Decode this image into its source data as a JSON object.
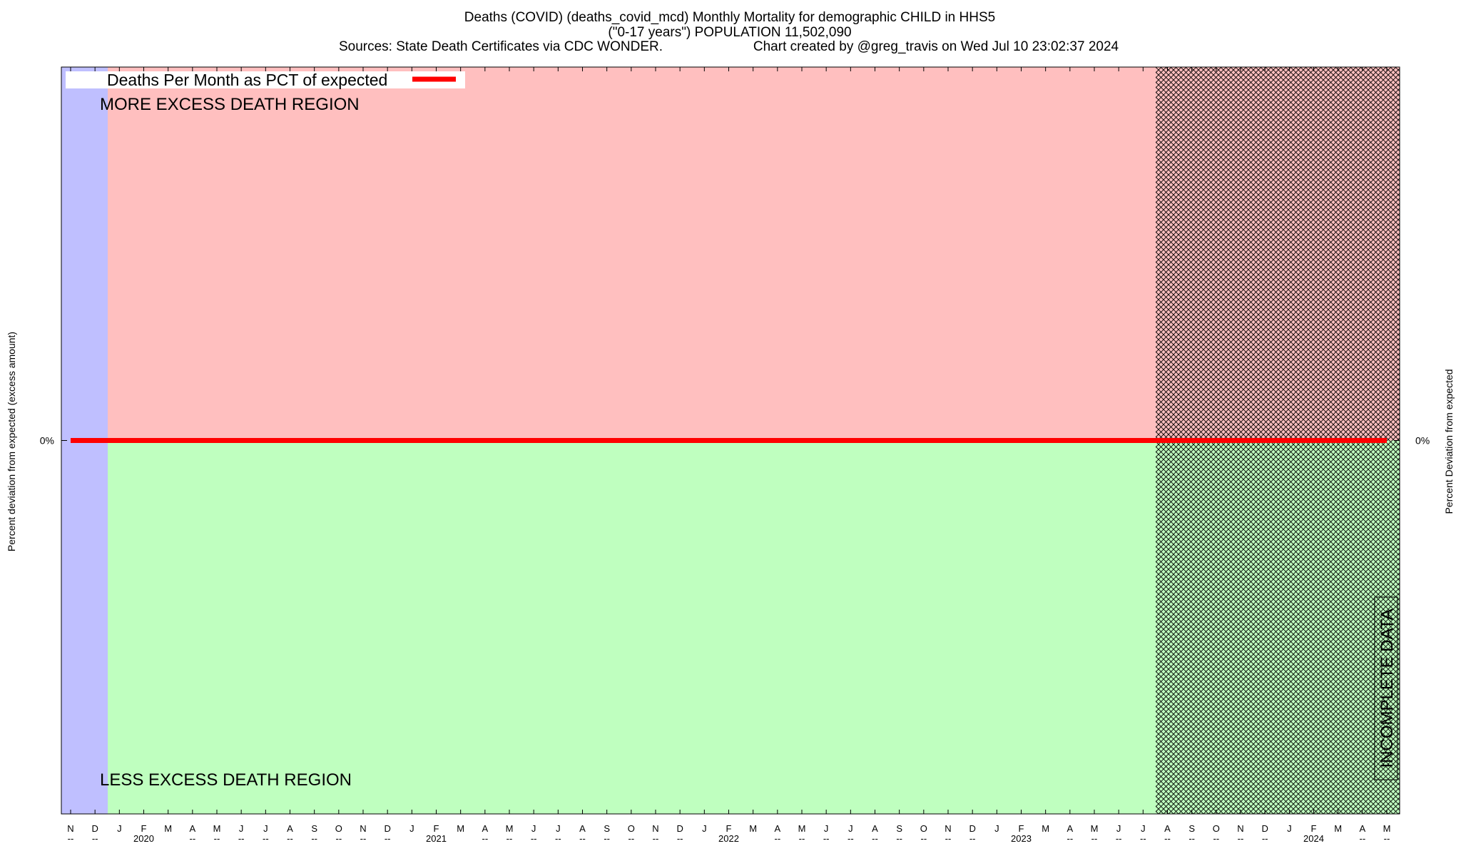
{
  "chart_data": {
    "type": "line",
    "title": "Deaths (COVID) (deaths_covid_mcd) Monthly Mortality for demographic CHILD in HHS5",
    "subtitle": "(\"0-17 years\") POPULATION 11,502,090",
    "sources": "Sources: State Death Certificates via CDC WONDER.",
    "credit": "Chart created by @greg_travis on Wed Jul 10 23:02:37 2024",
    "ylabel": "Percent deviation from expected (excess amount)",
    "y2label": "Percent Deviation from expected",
    "annotations": [
      "MORE EXCESS DEATH REGION",
      "LESS EXCESS DEATH REGION",
      "INCOMPLETE DATA"
    ],
    "categories": [
      "N",
      "D",
      "J",
      "F",
      "M",
      "A",
      "M",
      "J",
      "J",
      "A",
      "S",
      "O",
      "N",
      "D",
      "J",
      "F",
      "M",
      "A",
      "M",
      "J",
      "J",
      "A",
      "S",
      "O",
      "N",
      "D",
      "J",
      "F",
      "M",
      "A",
      "M",
      "J",
      "J",
      "A",
      "S",
      "O",
      "N",
      "D",
      "J",
      "F",
      "M",
      "A",
      "M",
      "J",
      "J",
      "A",
      "S",
      "O",
      "N",
      "D",
      "J",
      "F",
      "M",
      "A",
      "M"
    ],
    "category_sublabels": [
      "--",
      "--",
      null,
      "2020",
      null,
      "--",
      "--",
      "--",
      "--",
      "--",
      "--",
      "--",
      "--",
      "--",
      null,
      "2021",
      null,
      "--",
      "--",
      "--",
      "--",
      "--",
      "--",
      "--",
      "--",
      "--",
      null,
      "2022",
      null,
      "--",
      "--",
      "--",
      "--",
      "--",
      "--",
      "--",
      "--",
      "--",
      null,
      "2023",
      null,
      "--",
      "--",
      "--",
      "--",
      "--",
      "--",
      "--",
      "--",
      "--",
      null,
      "2024",
      null,
      "--",
      "--"
    ],
    "series": [
      {
        "name": "Deaths Per Month as PCT of expected",
        "color": "#ff0000",
        "values": [
          0,
          0,
          0,
          0,
          0,
          0,
          0,
          0,
          0,
          0,
          0,
          0,
          0,
          0,
          0,
          0,
          0,
          0,
          0,
          0,
          0,
          0,
          0,
          0,
          0,
          0,
          0,
          0,
          0,
          0,
          0,
          0,
          0,
          0,
          0,
          0,
          0,
          0,
          0,
          0,
          0,
          0,
          0,
          0,
          0,
          0,
          0,
          0,
          0,
          0,
          0,
          0,
          0,
          0,
          0
        ]
      }
    ],
    "ylim": [
      -1,
      1
    ],
    "yticks": [
      {
        "value": 0,
        "label": "0%"
      }
    ],
    "y2lim": [
      -1,
      1
    ],
    "y2ticks": [
      {
        "value": 0,
        "label": "0%"
      }
    ],
    "legend": "upper left"
  }
}
